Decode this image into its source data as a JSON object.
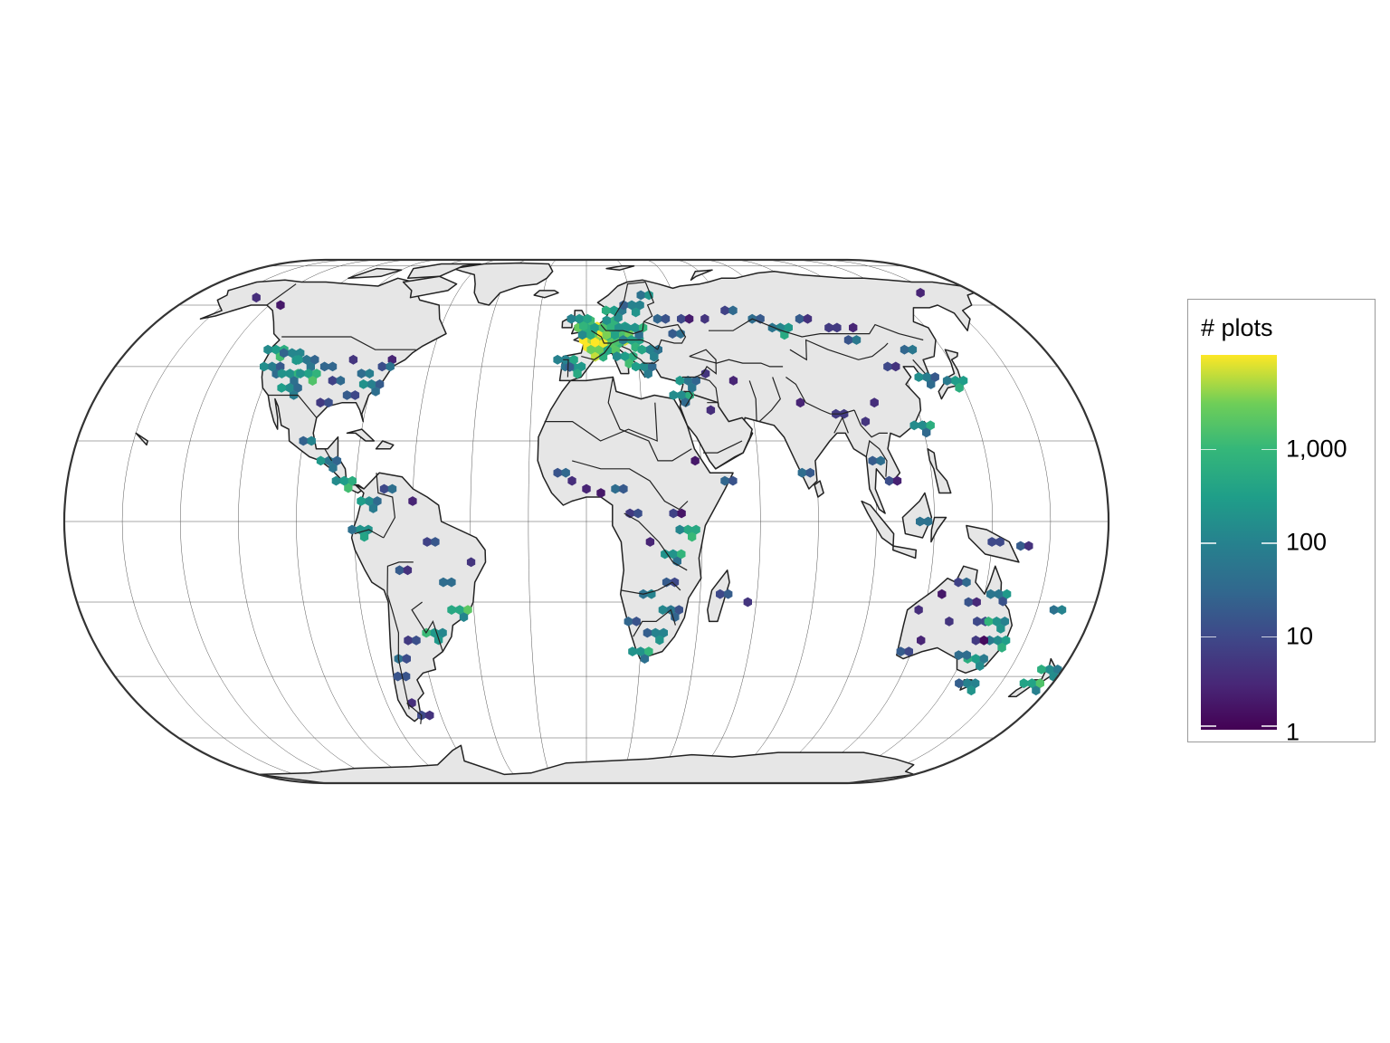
{
  "legend": {
    "title": "# plots",
    "ticks": [
      {
        "value": 1,
        "label": "1"
      },
      {
        "value": 10,
        "label": "10"
      },
      {
        "value": 100,
        "label": "100"
      },
      {
        "value": 1000,
        "label": "1,000"
      }
    ],
    "max_value": 10000,
    "scale": "log10",
    "palette": "viridis",
    "colors": [
      "#440154",
      "#3b528b",
      "#21918c",
      "#5ec962",
      "#fde725"
    ]
  },
  "map": {
    "projection": "Eckert IV",
    "graticule": true,
    "land_color": "#e6e6e6",
    "border_color": "#222222",
    "ocean_color": "#ffffff",
    "hexbins": [
      {
        "lon": -122,
        "lat": 45,
        "count": 300
      },
      {
        "lon": -120,
        "lat": 40,
        "count": 80
      },
      {
        "lon": -115,
        "lat": 44,
        "count": 120
      },
      {
        "lon": -112,
        "lat": 38,
        "count": 200
      },
      {
        "lon": -108,
        "lat": 42,
        "count": 60
      },
      {
        "lon": -105,
        "lat": 38,
        "count": 400
      },
      {
        "lon": -110,
        "lat": 34,
        "count": 150
      },
      {
        "lon": -100,
        "lat": 40,
        "count": 30
      },
      {
        "lon": -95,
        "lat": 36,
        "count": 8
      },
      {
        "lon": -90,
        "lat": 42,
        "count": 5
      },
      {
        "lon": -85,
        "lat": 38,
        "count": 40
      },
      {
        "lon": -80,
        "lat": 35,
        "count": 90
      },
      {
        "lon": -75,
        "lat": 42,
        "count": 3
      },
      {
        "lon": -78,
        "lat": 40,
        "count": 12
      },
      {
        "lon": -88,
        "lat": 32,
        "count": 20
      },
      {
        "lon": -97,
        "lat": 30,
        "count": 6
      },
      {
        "lon": -150,
        "lat": 63,
        "count": 4
      },
      {
        "lon": -135,
        "lat": 60,
        "count": 2
      },
      {
        "lon": -100,
        "lat": 20,
        "count": 25
      },
      {
        "lon": -90,
        "lat": 15,
        "count": 60
      },
      {
        "lon": -84,
        "lat": 10,
        "count": 300
      },
      {
        "lon": -75,
        "lat": 5,
        "count": 150
      },
      {
        "lon": -78,
        "lat": -2,
        "count": 200
      },
      {
        "lon": -70,
        "lat": 8,
        "count": 10
      },
      {
        "lon": -60,
        "lat": 5,
        "count": 3
      },
      {
        "lon": -55,
        "lat": -5,
        "count": 8
      },
      {
        "lon": -65,
        "lat": -12,
        "count": 20
      },
      {
        "lon": -50,
        "lat": -15,
        "count": 40
      },
      {
        "lon": -45,
        "lat": -22,
        "count": 500
      },
      {
        "lon": -55,
        "lat": -28,
        "count": 250
      },
      {
        "lon": -65,
        "lat": -30,
        "count": 6
      },
      {
        "lon": -70,
        "lat": -35,
        "count": 50
      },
      {
        "lon": -72,
        "lat": -40,
        "count": 15
      },
      {
        "lon": -70,
        "lat": -48,
        "count": 4
      },
      {
        "lon": -68,
        "lat": -52,
        "count": 10
      },
      {
        "lon": -40,
        "lat": -10,
        "count": 5
      },
      {
        "lon": 2,
        "lat": 48,
        "count": 5000
      },
      {
        "lon": 6,
        "lat": 50,
        "count": 9000
      },
      {
        "lon": 5,
        "lat": 45,
        "count": 3000
      },
      {
        "lon": 10,
        "lat": 47,
        "count": 2000
      },
      {
        "lon": 14,
        "lat": 50,
        "count": 1500
      },
      {
        "lon": 10,
        "lat": 52,
        "count": 800
      },
      {
        "lon": 18,
        "lat": 48,
        "count": 400
      },
      {
        "lon": 20,
        "lat": 52,
        "count": 200
      },
      {
        "lon": 25,
        "lat": 45,
        "count": 100
      },
      {
        "lon": 15,
        "lat": 43,
        "count": 300
      },
      {
        "lon": 22,
        "lat": 40,
        "count": 150
      },
      {
        "lon": -5,
        "lat": 40,
        "count": 250
      },
      {
        "lon": -8,
        "lat": 42,
        "count": 100
      },
      {
        "lon": 0,
        "lat": 52,
        "count": 600
      },
      {
        "lon": -3,
        "lat": 55,
        "count": 200
      },
      {
        "lon": 12,
        "lat": 58,
        "count": 300
      },
      {
        "lon": 20,
        "lat": 60,
        "count": 100
      },
      {
        "lon": 25,
        "lat": 64,
        "count": 50
      },
      {
        "lon": 30,
        "lat": 55,
        "count": 30
      },
      {
        "lon": 35,
        "lat": 50,
        "count": 20
      },
      {
        "lon": 40,
        "lat": 55,
        "count": 10
      },
      {
        "lon": 50,
        "lat": 55,
        "count": 5
      },
      {
        "lon": 60,
        "lat": 58,
        "count": 8
      },
      {
        "lon": 70,
        "lat": 55,
        "count": 40
      },
      {
        "lon": 80,
        "lat": 52,
        "count": 120
      },
      {
        "lon": 90,
        "lat": 55,
        "count": 20
      },
      {
        "lon": 100,
        "lat": 52,
        "count": 6
      },
      {
        "lon": 105,
        "lat": 48,
        "count": 15
      },
      {
        "lon": 110,
        "lat": 52,
        "count": 3
      },
      {
        "lon": 125,
        "lat": 45,
        "count": 30
      },
      {
        "lon": 128,
        "lat": 37,
        "count": 80
      },
      {
        "lon": 138,
        "lat": 36,
        "count": 300
      },
      {
        "lon": 120,
        "lat": 24,
        "count": 150
      },
      {
        "lon": 115,
        "lat": 40,
        "count": 10
      },
      {
        "lon": 105,
        "lat": 30,
        "count": 4
      },
      {
        "lon": 100,
        "lat": 25,
        "count": 5
      },
      {
        "lon": 90,
        "lat": 27,
        "count": 6
      },
      {
        "lon": 78,
        "lat": 30,
        "count": 3
      },
      {
        "lon": 75,
        "lat": 12,
        "count": 40
      },
      {
        "lon": 100,
        "lat": 15,
        "count": 20
      },
      {
        "lon": 105,
        "lat": 10,
        "count": 12
      },
      {
        "lon": 115,
        "lat": 0,
        "count": 50
      },
      {
        "lon": 35,
        "lat": 32,
        "count": 150
      },
      {
        "lon": 38,
        "lat": 36,
        "count": 60
      },
      {
        "lon": 45,
        "lat": 38,
        "count": 5
      },
      {
        "lon": 55,
        "lat": 36,
        "count": 3
      },
      {
        "lon": 45,
        "lat": 28,
        "count": 4
      },
      {
        "lon": 38,
        "lat": 15,
        "count": 2
      },
      {
        "lon": 48,
        "lat": 10,
        "count": 30
      },
      {
        "lon": -10,
        "lat": 12,
        "count": 15
      },
      {
        "lon": -5,
        "lat": 10,
        "count": 4
      },
      {
        "lon": 0,
        "lat": 8,
        "count": 3
      },
      {
        "lon": 5,
        "lat": 7,
        "count": 2
      },
      {
        "lon": 10,
        "lat": 8,
        "count": 40
      },
      {
        "lon": 15,
        "lat": 2,
        "count": 6
      },
      {
        "lon": 30,
        "lat": 2,
        "count": 8
      },
      {
        "lon": 35,
        "lat": -2,
        "count": 500
      },
      {
        "lon": 30,
        "lat": -8,
        "count": 200
      },
      {
        "lon": 28,
        "lat": -15,
        "count": 20
      },
      {
        "lon": 20,
        "lat": -18,
        "count": 50
      },
      {
        "lon": 30,
        "lat": -22,
        "count": 60
      },
      {
        "lon": 25,
        "lat": -28,
        "count": 100
      },
      {
        "lon": 20,
        "lat": -33,
        "count": 200
      },
      {
        "lon": 15,
        "lat": -25,
        "count": 30
      },
      {
        "lon": 47,
        "lat": -18,
        "count": 10
      },
      {
        "lon": 57,
        "lat": -20,
        "count": 5
      },
      {
        "lon": 22,
        "lat": -5,
        "count": 3
      },
      {
        "lon": 118,
        "lat": -22,
        "count": 4
      },
      {
        "lon": 122,
        "lat": -30,
        "count": 3
      },
      {
        "lon": 130,
        "lat": -25,
        "count": 5
      },
      {
        "lon": 135,
        "lat": -20,
        "count": 15
      },
      {
        "lon": 140,
        "lat": -25,
        "count": 10
      },
      {
        "lon": 145,
        "lat": -18,
        "count": 60
      },
      {
        "lon": 147,
        "lat": -25,
        "count": 200
      },
      {
        "lon": 150,
        "lat": -30,
        "count": 150
      },
      {
        "lon": 145,
        "lat": -35,
        "count": 300
      },
      {
        "lon": 138,
        "lat": -34,
        "count": 40
      },
      {
        "lon": 130,
        "lat": -15,
        "count": 8
      },
      {
        "lon": 116,
        "lat": -33,
        "count": 20
      },
      {
        "lon": 125,
        "lat": -18,
        "count": 2
      },
      {
        "lon": 142,
        "lat": -30,
        "count": 6
      },
      {
        "lon": 147,
        "lat": -42,
        "count": 100
      },
      {
        "lon": 172,
        "lat": -42,
        "count": 400
      },
      {
        "lon": 175,
        "lat": -38,
        "count": 150
      },
      {
        "lon": 166,
        "lat": -22,
        "count": 50
      },
      {
        "lon": 150,
        "lat": -6,
        "count": 20
      },
      {
        "lon": 140,
        "lat": -5,
        "count": 10
      },
      {
        "lon": 155,
        "lat": 65,
        "count": 3
      }
    ]
  }
}
